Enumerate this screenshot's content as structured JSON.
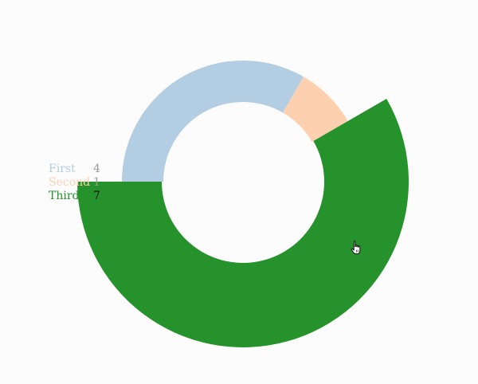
{
  "chart_data": {
    "type": "pie",
    "variant": "donut",
    "categories": [
      "First",
      "Second",
      "Third"
    ],
    "values": [
      4,
      1,
      7
    ],
    "colors": [
      "#b3cde3",
      "#fdd0b0",
      "#26922b"
    ],
    "legend_value_colors": [
      "#999999",
      "#999999",
      "#111111"
    ],
    "highlighted": "Third",
    "legend_position": "left",
    "title": "",
    "xlabel": "",
    "ylabel": ""
  },
  "cursor": {
    "icon": "hand-pointer-icon"
  }
}
